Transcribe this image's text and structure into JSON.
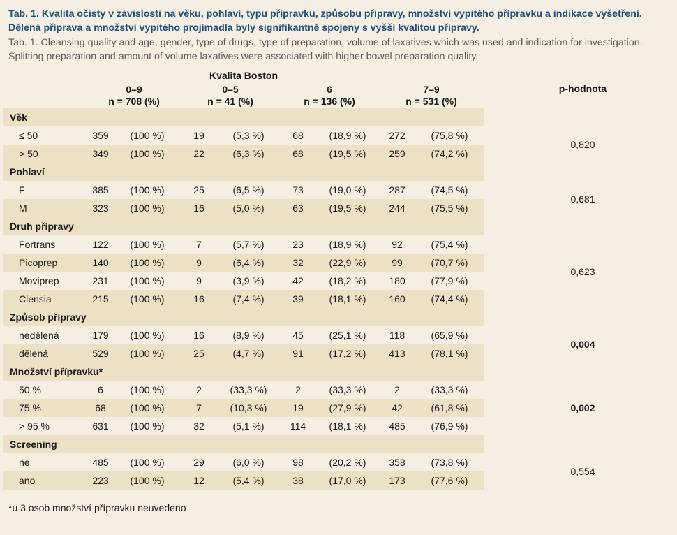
{
  "caption": {
    "title_cz": "Tab. 1. Kvalita očisty v závislosti na věku, pohlaví, typu přípravku, způsobu přípravy, množství vypitého přípravku a indikace vyšetření. Dělená příprava a množství vypitého projímadla byly signifikantně spojeny s vyšší kvalitou přípravy.",
    "title_en": "Tab. 1. Cleansing quality and age, gender, type of drugs, type of preparation, volume of laxatives which was used and indication for investigation. Splitting preparation and amount of volume laxatives were associated with higher bowel preparation quality."
  },
  "header": {
    "super": "Kvalita Boston",
    "columns": [
      {
        "label": "0–9",
        "n": "n = 708 (%)"
      },
      {
        "label": "0–5",
        "n": "n = 41 (%)"
      },
      {
        "label": "6",
        "n": "n = 136 (%)"
      },
      {
        "label": "7–9",
        "n": "n = 531 (%)"
      }
    ],
    "pvalue": "p-hodnota"
  },
  "groups": [
    {
      "title": "Věk",
      "pvalue": "0,820",
      "significant": false,
      "rows": [
        {
          "label": "≤ 50",
          "v": [
            "359",
            "(100 %)",
            "19",
            "(5,3 %)",
            "68",
            "(18,9 %)",
            "272",
            "(75,8 %)"
          ]
        },
        {
          "label": "> 50",
          "v": [
            "349",
            "(100 %)",
            "22",
            "(6,3 %)",
            "68",
            "(19,5 %)",
            "259",
            "(74,2 %)"
          ]
        }
      ]
    },
    {
      "title": "Pohlaví",
      "pvalue": "0,681",
      "significant": false,
      "rows": [
        {
          "label": "F",
          "v": [
            "385",
            "(100 %)",
            "25",
            "(6,5 %)",
            "73",
            "(19,0 %)",
            "287",
            "(74,5 %)"
          ]
        },
        {
          "label": "M",
          "v": [
            "323",
            "(100 %)",
            "16",
            "(5,0 %)",
            "63",
            "(19,5 %)",
            "244",
            "(75,5 %)"
          ]
        }
      ]
    },
    {
      "title": "Druh přípravy",
      "pvalue": "0,623",
      "significant": false,
      "rows": [
        {
          "label": "Fortrans",
          "v": [
            "122",
            "(100 %)",
            "7",
            "(5,7 %)",
            "23",
            "(18,9 %)",
            "92",
            "(75,4 %)"
          ]
        },
        {
          "label": "Picoprep",
          "v": [
            "140",
            "(100 %)",
            "9",
            "(6,4 %)",
            "32",
            "(22,9 %)",
            "99",
            "(70,7 %)"
          ]
        },
        {
          "label": "Moviprep",
          "v": [
            "231",
            "(100 %)",
            "9",
            "(3,9 %)",
            "42",
            "(18,2 %)",
            "180",
            "(77,9 %)"
          ]
        },
        {
          "label": "Clensia",
          "v": [
            "215",
            "(100 %)",
            "16",
            "(7,4 %)",
            "39",
            "(18,1 %)",
            "160",
            "(74,4 %)"
          ]
        }
      ]
    },
    {
      "title": "Způsob přípravy",
      "pvalue": "0,004",
      "significant": true,
      "rows": [
        {
          "label": "nedělená",
          "v": [
            "179",
            "(100 %)",
            "16",
            "(8,9 %)",
            "45",
            "(25,1 %)",
            "118",
            "(65,9 %)"
          ]
        },
        {
          "label": "dělená",
          "v": [
            "529",
            "(100 %)",
            "25",
            "(4,7 %)",
            "91",
            "(17,2 %)",
            "413",
            "(78,1 %)"
          ]
        }
      ]
    },
    {
      "title": "Množství přípravku*",
      "pvalue": "0,002",
      "significant": true,
      "rows": [
        {
          "label": "50 %",
          "v": [
            "6",
            "(100 %)",
            "2",
            "(33,3 %)",
            "2",
            "(33,3 %)",
            "2",
            "(33,3 %)"
          ]
        },
        {
          "label": "75 %",
          "v": [
            "68",
            "(100 %)",
            "7",
            "(10,3 %)",
            "19",
            "(27,9 %)",
            "42",
            "(61,8 %)"
          ]
        },
        {
          "label": "> 95 %",
          "v": [
            "631",
            "(100 %)",
            "32",
            "(5,1 %)",
            "114",
            "(18,1 %)",
            "485",
            "(76,9 %)"
          ]
        }
      ]
    },
    {
      "title": "Screening",
      "pvalue": "0,554",
      "significant": false,
      "rows": [
        {
          "label": "ne",
          "v": [
            "485",
            "(100 %)",
            "29",
            "(6,0 %)",
            "98",
            "(20,2 %)",
            "358",
            "(73,8 %)"
          ]
        },
        {
          "label": "ano",
          "v": [
            "223",
            "(100 %)",
            "12",
            "(5,4 %)",
            "38",
            "(17,0 %)",
            "173",
            "(77,6 %)"
          ]
        }
      ]
    }
  ],
  "footnote": "*u 3 osob množství přípravku neuvedeno"
}
